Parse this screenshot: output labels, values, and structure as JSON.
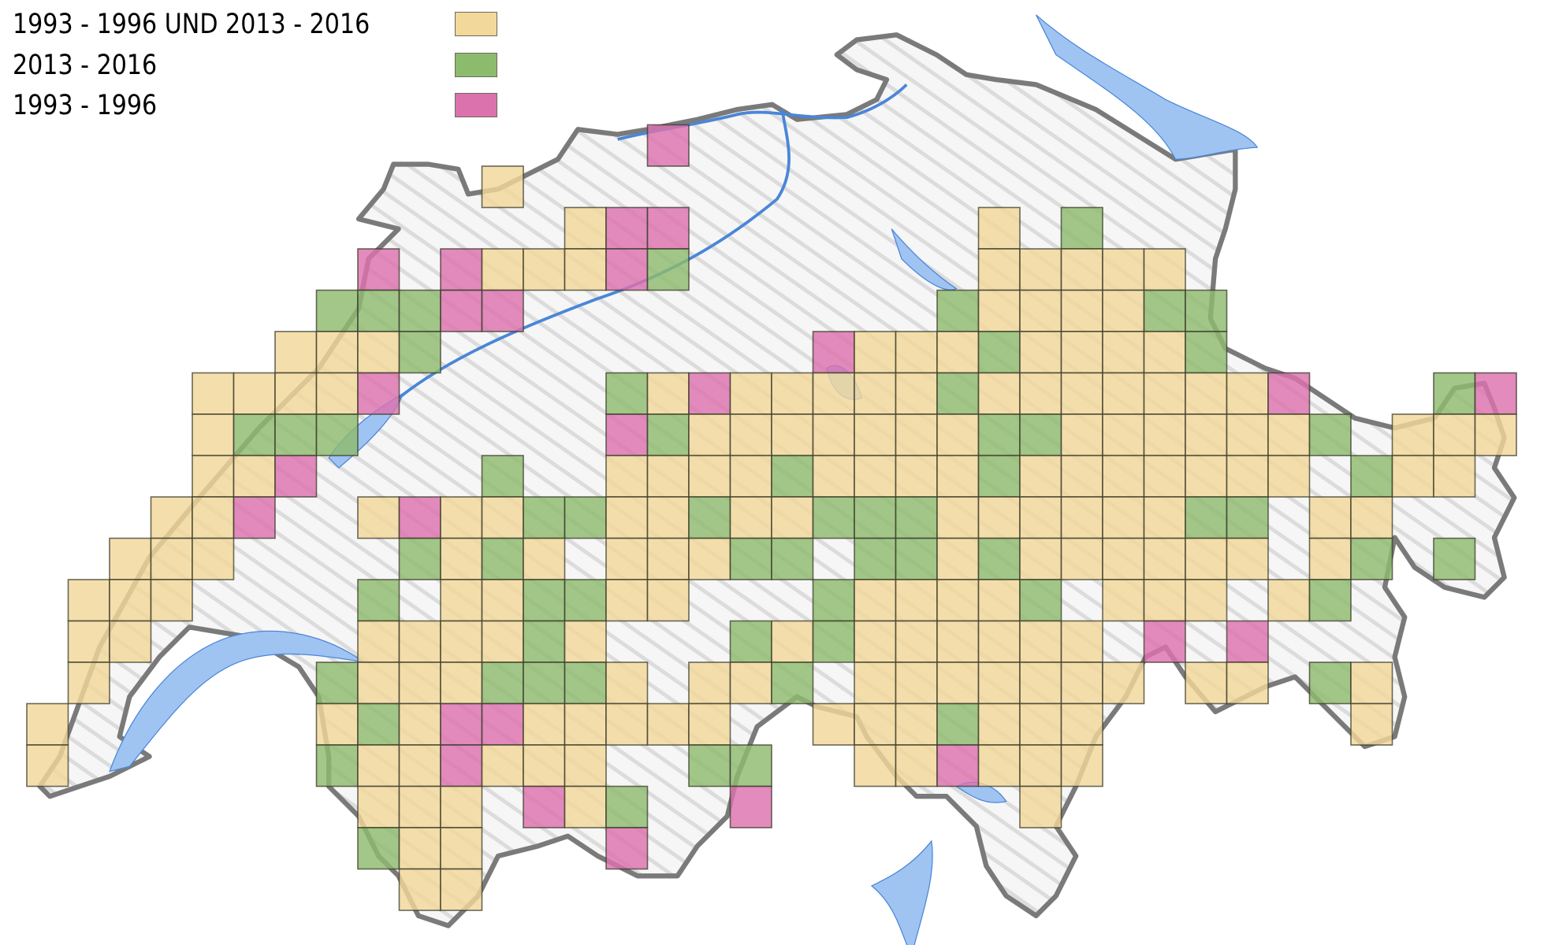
{
  "legend": {
    "items": [
      {
        "label": "1993 - 1996 UND 2013 - 2016",
        "category": "both",
        "color": "#f2d89a"
      },
      {
        "label": "2013 - 2016",
        "category": "recent",
        "color": "#8dbb6e"
      },
      {
        "label": "1993 - 1996",
        "category": "old",
        "color": "#dc72ad"
      }
    ]
  },
  "colors": {
    "both": "#f2d89a",
    "recent": "#8dbb6e",
    "old": "#dc72ad",
    "lake": "#9fc4f2",
    "river": "#4a86d8",
    "border": "#7a7a7a",
    "land": "#f4f4f4"
  },
  "grid": {
    "key": {
      "Y": "both",
      "G": "recent",
      "M": "old"
    },
    "rows": [
      "...............M....................",
      "...........Y........................",
      ".............YMM.......Y.G..........",
      "........M.MYYYMG.......YYYYY........",
      ".......GGGMM..........GYYYYGG.......",
      "......YYYG.........MYYYGYYYYG.......",
      "....YYYYM.....GYMYYYYYGYYYYYYYM...GM",
      "....YGGG......MGYYYYYYYGGYYYYYYG.YYY",
      "....YYM....G..YYYYGYYYYGYYYYYYY.GYY.",
      "...YYM..YMYYGGYYGYYGGGYYYYYYGG.YY...",
      "..YYY....GYGY.YYYGG.GGYGYYYYYY.YG.G.",
      ".YYY....G.YYGGYY...GYYYYG.YYY.YG....",
      ".YY.....YYYYGY...GYGYYYYYY.M.M......",
      ".Y.....GYYYGGGY.YYG.YYYYYYY.YY.GY...",
      "Y......YGYMMYYYYY..YYYGYYY......Y...",
      "Y......GYYMYYY..GG..YYMYYY..........",
      "........YYY.MYG..M......Y...........",
      "........GYY...M.....................",
      ".........YY........................."
    ]
  }
}
